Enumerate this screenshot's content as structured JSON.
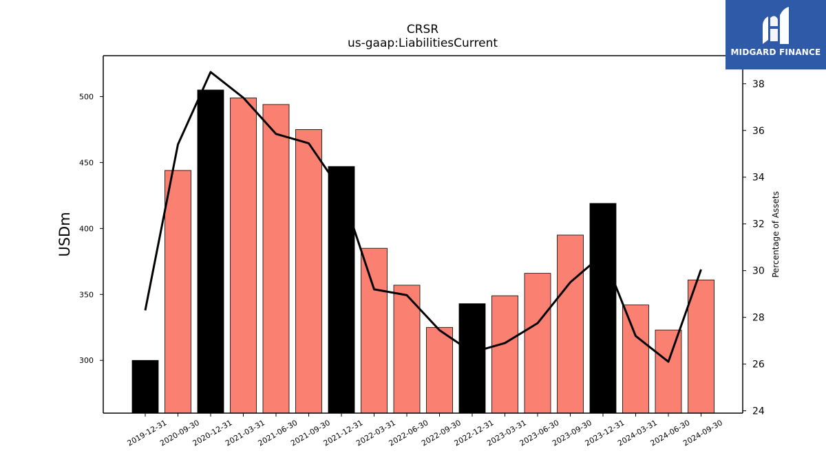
{
  "chart_data": {
    "type": "bar",
    "title": "CRSR",
    "subtitle": "us-gaap:LiabilitiesCurrent",
    "ylabel": "USDm",
    "y2label": "Percentage of Assets",
    "categories": [
      "2019-12-31",
      "2020-09-30",
      "2020-12-31",
      "2021-03-31",
      "2021-06-30",
      "2021-09-30",
      "2021-12-31",
      "2022-03-31",
      "2022-06-30",
      "2022-09-30",
      "2022-12-31",
      "2023-03-31",
      "2023-06-30",
      "2023-09-30",
      "2023-12-31",
      "2024-03-31",
      "2024-06-30",
      "2024-09-30"
    ],
    "series": [
      {
        "values": [
          300,
          444,
          505,
          499,
          494,
          475,
          447,
          385,
          357,
          325,
          343,
          349,
          366,
          395,
          419,
          342,
          323,
          361
        ],
        "colors": [
          "#000000",
          "#fa8072",
          "#000000",
          "#fa8072",
          "#fa8072",
          "#fa8072",
          "#000000",
          "#fa8072",
          "#fa8072",
          "#fa8072",
          "#000000",
          "#fa8072",
          "#fa8072",
          "#fa8072",
          "#000000",
          "#fa8072",
          "#fa8072",
          "#fa8072"
        ]
      },
      {
        "type": "line",
        "axis": "right",
        "values": [
          28.3,
          35.4,
          38.5,
          37.4,
          35.85,
          35.45,
          33.4,
          29.2,
          28.95,
          27.45,
          26.5,
          26.9,
          27.75,
          29.5,
          30.7,
          27.2,
          26.1,
          30.05
        ],
        "color": "#000000"
      }
    ],
    "ylim": [
      260,
      531
    ],
    "yticks": [
      300,
      350,
      400,
      450,
      500
    ],
    "y2lim": [
      23.9,
      39.2
    ],
    "y2ticks": [
      24,
      26,
      28,
      30,
      32,
      34,
      36,
      38
    ],
    "grid": false
  },
  "logo": {
    "text": "MIDGARD FINANCE",
    "bg_color": "#2e5aa8"
  }
}
